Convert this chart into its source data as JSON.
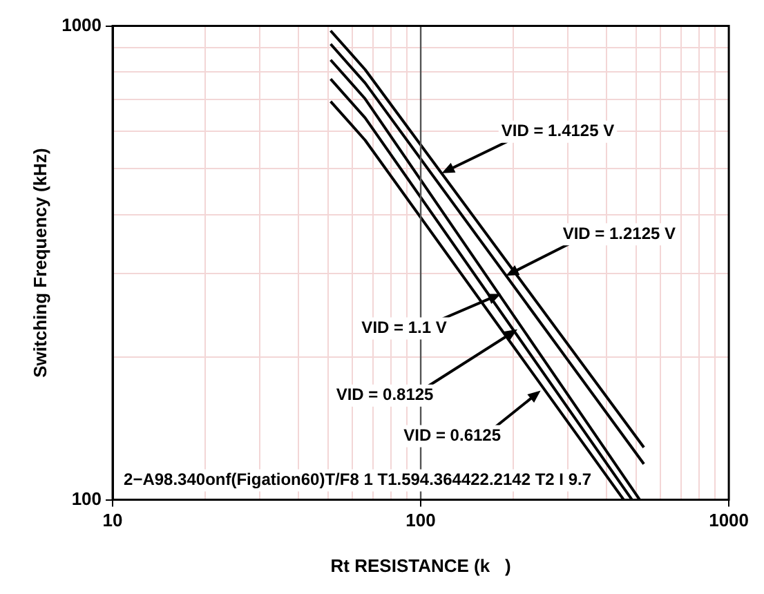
{
  "chart_data": {
    "type": "line",
    "xlabel": "Rt RESISTANCE (k   )",
    "ylabel": "Switching Frequency (kHz)",
    "ref_lines": [
      {
        "axis": "x",
        "value": 100,
        "color": "#555555"
      }
    ],
    "xlim": [
      10,
      1000
    ],
    "ylim": [
      100,
      1000
    ],
    "log": "xy",
    "grid": true,
    "legend": false,
    "marker": "none",
    "line_style": "solid",
    "xticks": [
      10,
      {
        "value": 20,
        "label": null
      },
      {
        "value": 30,
        "label": null
      },
      {
        "value": 40,
        "label": null
      },
      {
        "value": 50,
        "label": null
      },
      {
        "value": 60,
        "label": null
      },
      {
        "value": 70,
        "label": null
      },
      {
        "value": 80,
        "label": null
      },
      {
        "value": 90,
        "label": null
      },
      100,
      {
        "value": 200,
        "label": null
      },
      {
        "value": 300,
        "label": null
      },
      {
        "value": 400,
        "label": null
      },
      {
        "value": 500,
        "label": null
      },
      {
        "value": 600,
        "label": null
      },
      {
        "value": 700,
        "label": null
      },
      {
        "value": 800,
        "label": null
      },
      {
        "value": 900,
        "label": null
      },
      1000
    ],
    "yticks": [
      100,
      {
        "value": 200,
        "label": null
      },
      {
        "value": 300,
        "label": null
      },
      {
        "value": 400,
        "label": null
      },
      {
        "value": 500,
        "label": null
      },
      {
        "value": 600,
        "label": null
      },
      {
        "value": 700,
        "label": null
      },
      {
        "value": 800,
        "label": null
      },
      {
        "value": 900,
        "label": null
      },
      1000
    ],
    "series": [
      {
        "color": "#000000",
        "x": [
          51,
          66,
          530
        ],
        "values": [
          977,
          809,
          129
        ]
      },
      {
        "color": "#000000",
        "x": [
          51,
          66,
          530
        ],
        "values": [
          916,
          758,
          119
        ]
      },
      {
        "color": "#000000",
        "x": [
          51,
          66,
          514
        ],
        "values": [
          848,
          702,
          100
        ]
      },
      {
        "color": "#000000",
        "x": [
          51,
          66,
          485
        ],
        "values": [
          773,
          640,
          100
        ]
      },
      {
        "color": "#000000",
        "x": [
          51,
          66,
          456
        ],
        "values": [
          693,
          574,
          100
        ]
      }
    ],
    "annotations": [
      {
        "text": "VID = 1.4125 V",
        "x": 117,
        "y": 489
      },
      {
        "text": "VID = 1.2125 V",
        "x": 189,
        "y": 297
      },
      {
        "text": "VID = 1.1 V",
        "x": 182,
        "y": 272
      },
      {
        "text": "VID = 0.8125",
        "x": 206,
        "y": 229
      },
      {
        "text": "VID = 0.6125",
        "x": 245,
        "y": 170
      },
      "2−A98.340onf(Figation60)T/F8 1 T1.594.364422.2142 T2 I 9.7"
    ]
  }
}
